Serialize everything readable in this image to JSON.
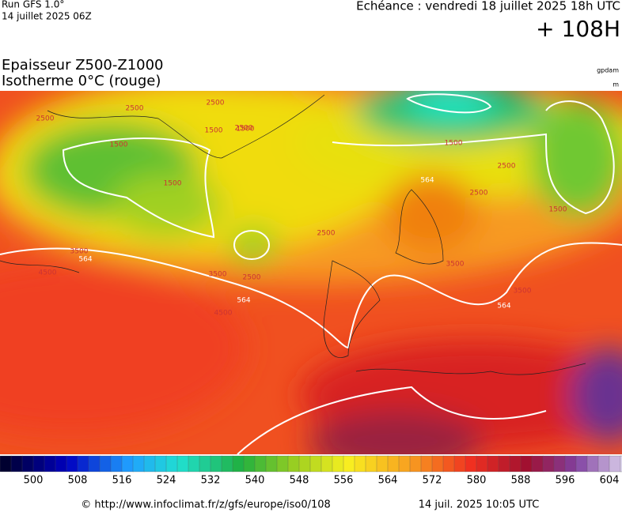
{
  "header": {
    "run": "Run GFS 1.0°",
    "run_date": "14 juillet 2025 06Z",
    "valid": "Echéance : vendredi 18 juillet 2025 18h UTC",
    "lead": "+ 108H",
    "title": "Epaisseur Z500-Z1000",
    "subtitle": "Isotherme 0°C (rouge)",
    "unit_top": "gpdam",
    "unit_bottom": "m"
  },
  "map": {
    "contour_labels": [
      2500,
      2500,
      1500,
      1500,
      2500,
      1500,
      1500,
      2500,
      3500,
      564,
      3500,
      2500,
      564,
      4500,
      4500,
      2500,
      564,
      2500,
      3500,
      564,
      3500,
      1500,
      2500,
      1500
    ]
  },
  "colorbar": {
    "ticks": [
      500,
      508,
      516,
      524,
      532,
      540,
      548,
      556,
      564,
      572,
      580,
      588,
      596,
      604
    ]
  },
  "footer": {
    "url": "© http://www.infoclimat.fr/z/gfs/europe/iso0/108",
    "generated": "14 juil. 2025 10:05 UTC"
  }
}
